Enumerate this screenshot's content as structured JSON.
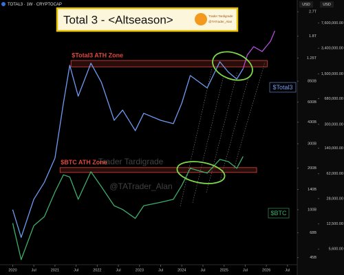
{
  "chart_data": {
    "type": "line",
    "title": "Total 3 - <Altseason>",
    "subtitle": "TOTAL3 · 1W · CRYPTOCAP",
    "logo": [
      "Trader Tardigrade",
      "@TATrader_Alan"
    ],
    "watermark": [
      "Trader Tardigrade",
      "@TATrader_Alan"
    ],
    "y_label": "USD",
    "y2_label": "USD",
    "log_scale": true,
    "grid": false,
    "x": [
      2020.0,
      2020.2,
      2020.5,
      2020.75,
      2021.0,
      2021.2,
      2021.35,
      2021.55,
      2021.85,
      2022.1,
      2022.4,
      2022.6,
      2022.9,
      2023.1,
      2023.5,
      2023.8,
      2024.0,
      2024.2,
      2024.6,
      2024.9,
      2025.1,
      2025.3,
      2025.45,
      2025.55,
      2025.7,
      2025.9,
      2026.1,
      2026.2
    ],
    "xlim": [
      2019.7,
      2026.73
    ],
    "xticks": [
      {
        "value": 2020,
        "label": "2020"
      },
      {
        "value": 2020.5,
        "label": "Jul"
      },
      {
        "value": 2021,
        "label": "2021"
      },
      {
        "value": 2021.5,
        "label": "Jul"
      },
      {
        "value": 2022,
        "label": "2022"
      },
      {
        "value": 2022.5,
        "label": "Jul"
      },
      {
        "value": 2023,
        "label": "2023"
      },
      {
        "value": 2023.5,
        "label": "Jul"
      },
      {
        "value": 2024,
        "label": "2024"
      },
      {
        "value": 2024.5,
        "label": "Jul"
      },
      {
        "value": 2025,
        "label": "2025"
      },
      {
        "value": 2025.5,
        "label": "Jul"
      },
      {
        "value": 2026,
        "label": "2026"
      },
      {
        "value": 2026.5,
        "label": "Jul"
      }
    ],
    "ylim": [
      40,
      3000
    ],
    "yticks": [
      {
        "value": 2700,
        "label": "2.7T"
      },
      {
        "value": 1800,
        "label": "1.8T"
      },
      {
        "value": 1250,
        "label": "1.25T"
      },
      {
        "value": 850,
        "label": "850B"
      },
      {
        "value": 600,
        "label": "600B"
      },
      {
        "value": 430,
        "label": "430B"
      },
      {
        "value": 300,
        "label": "300B"
      },
      {
        "value": 200,
        "label": "200B"
      },
      {
        "value": 140,
        "label": "140B"
      },
      {
        "value": 100,
        "label": "100B"
      },
      {
        "value": 68,
        "label": "68B"
      },
      {
        "value": 45,
        "label": "45B"
      }
    ],
    "y2lim": [
      3400,
      13300000
    ],
    "y2ticks": [
      {
        "value": 7600000,
        "label": "7,600,000.00"
      },
      {
        "value": 3400000,
        "label": "3,400,000.00"
      },
      {
        "value": 1500000,
        "label": "1,500,000.00"
      },
      {
        "value": 680000,
        "label": "680,000.00"
      },
      {
        "value": 300000,
        "label": "300,000.00"
      },
      {
        "value": 140000,
        "label": "140,000.00"
      },
      {
        "value": 62000,
        "label": "62,000.00"
      },
      {
        "value": 28000,
        "label": "28,000.00"
      },
      {
        "value": 12500,
        "label": "12,500.00"
      },
      {
        "value": 5600,
        "label": "5,600.00"
      }
    ],
    "series": [
      {
        "name": "$Total3",
        "color": "#6f9cf2",
        "values": [
          100,
          63,
          119,
          158,
          236,
          590,
          1109,
          662,
          1147,
          832,
          443,
          526,
          373,
          498,
          443,
          419,
          590,
          934,
          760,
          1175,
          989,
          881,
          1047,
          null,
          null,
          null,
          null,
          null
        ]
      },
      {
        "color": "#b24fd8",
        "values": [
          null,
          null,
          null,
          null,
          null,
          null,
          null,
          null,
          null,
          null,
          null,
          null,
          null,
          null,
          null,
          null,
          null,
          null,
          null,
          null,
          null,
          null,
          1047,
          1316,
          1511,
          1394,
          1656,
          1968
        ]
      },
      {
        "name": "$BTC",
        "color": "#3fae6a",
        "axis": "y2",
        "values": [
          12800,
          4000,
          11800,
          15800,
          34600,
          59800,
          55800,
          27400,
          66100,
          40800,
          22300,
          19800,
          14900,
          22300,
          24900,
          27400,
          42700,
          73700,
          63200,
          97800,
          91400,
          73700,
          107700,
          null,
          null,
          null,
          null,
          null
        ]
      }
    ],
    "annotations": [
      {
        "text": "$Total3 ATH Zone",
        "x_range": [
          2021.38,
          2026.02
        ],
        "y_range": [
          1080,
          1200
        ],
        "axis": "y",
        "color": "#e0463c"
      },
      {
        "text": "$BTC ATH Zone",
        "x_range": [
          2021.12,
          2025.77
        ],
        "y_range": [
          64600,
          75300
        ],
        "axis": "y2",
        "color": "#e0463c"
      }
    ]
  }
}
